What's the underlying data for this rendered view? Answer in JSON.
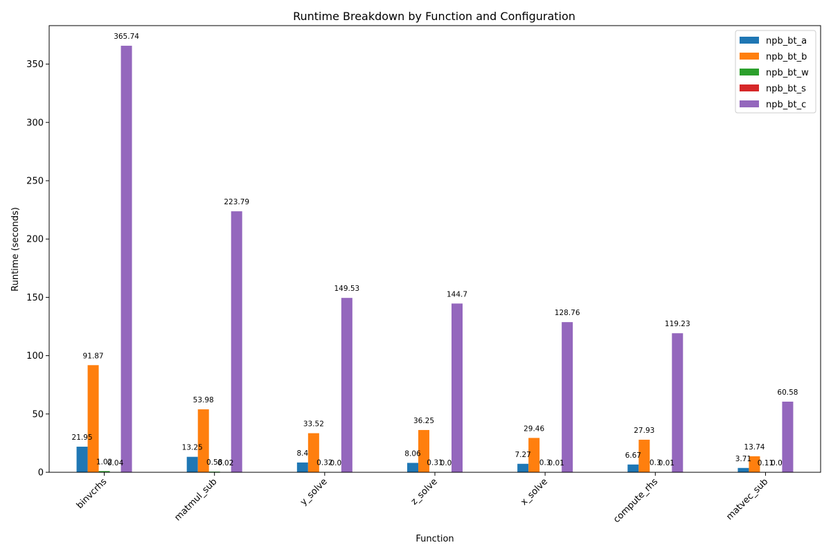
{
  "chart_data": {
    "type": "bar",
    "title": "Runtime Breakdown by Function and Configuration",
    "xlabel": "Function",
    "ylabel": "Runtime (seconds)",
    "ylim": [
      0,
      383
    ],
    "yticks": [
      0,
      50,
      100,
      150,
      200,
      250,
      300,
      350
    ],
    "categories": [
      "binvcrhs",
      "matmul_sub",
      "y_solve",
      "z_solve",
      "x_solve",
      "compute_rhs",
      "matvec_sub"
    ],
    "series": [
      {
        "name": "npb_bt_a",
        "color": "#1f77b4",
        "values": [
          21.95,
          13.25,
          8.4,
          8.06,
          7.27,
          6.67,
          3.71
        ],
        "labels": [
          "21.95",
          "13.25",
          "8.4",
          "8.06",
          "7.27",
          "6.67",
          "3.71"
        ]
      },
      {
        "name": "npb_bt_b",
        "color": "#ff7f0e",
        "values": [
          91.87,
          53.98,
          33.52,
          36.25,
          29.46,
          27.93,
          13.74
        ],
        "labels": [
          "91.87",
          "53.98",
          "33.52",
          "36.25",
          "29.46",
          "27.93",
          "13.74"
        ]
      },
      {
        "name": "npb_bt_w",
        "color": "#2ca02c",
        "values": [
          1.02,
          0.58,
          0.32,
          0.31,
          0.3,
          0.3,
          0.11
        ],
        "labels": [
          "1.02",
          "0.58",
          "0.32",
          "0.31",
          "0.3",
          "0.3",
          "0.11"
        ]
      },
      {
        "name": "npb_bt_s",
        "color": "#d62728",
        "values": [
          0.04,
          0.02,
          0.0,
          0.0,
          0.01,
          0.01,
          0.0
        ],
        "labels": [
          "0.04",
          "0.02",
          "0.0",
          "0.0",
          "0.01",
          "0.01",
          "0.0"
        ]
      },
      {
        "name": "npb_bt_c",
        "color": "#9467bd",
        "values": [
          365.74,
          223.79,
          149.53,
          144.7,
          128.76,
          119.23,
          60.58
        ],
        "labels": [
          "365.74",
          "223.79",
          "149.53",
          "144.7",
          "128.76",
          "119.23",
          "60.58"
        ]
      }
    ],
    "legend_position": "top-right",
    "grid": false
  }
}
